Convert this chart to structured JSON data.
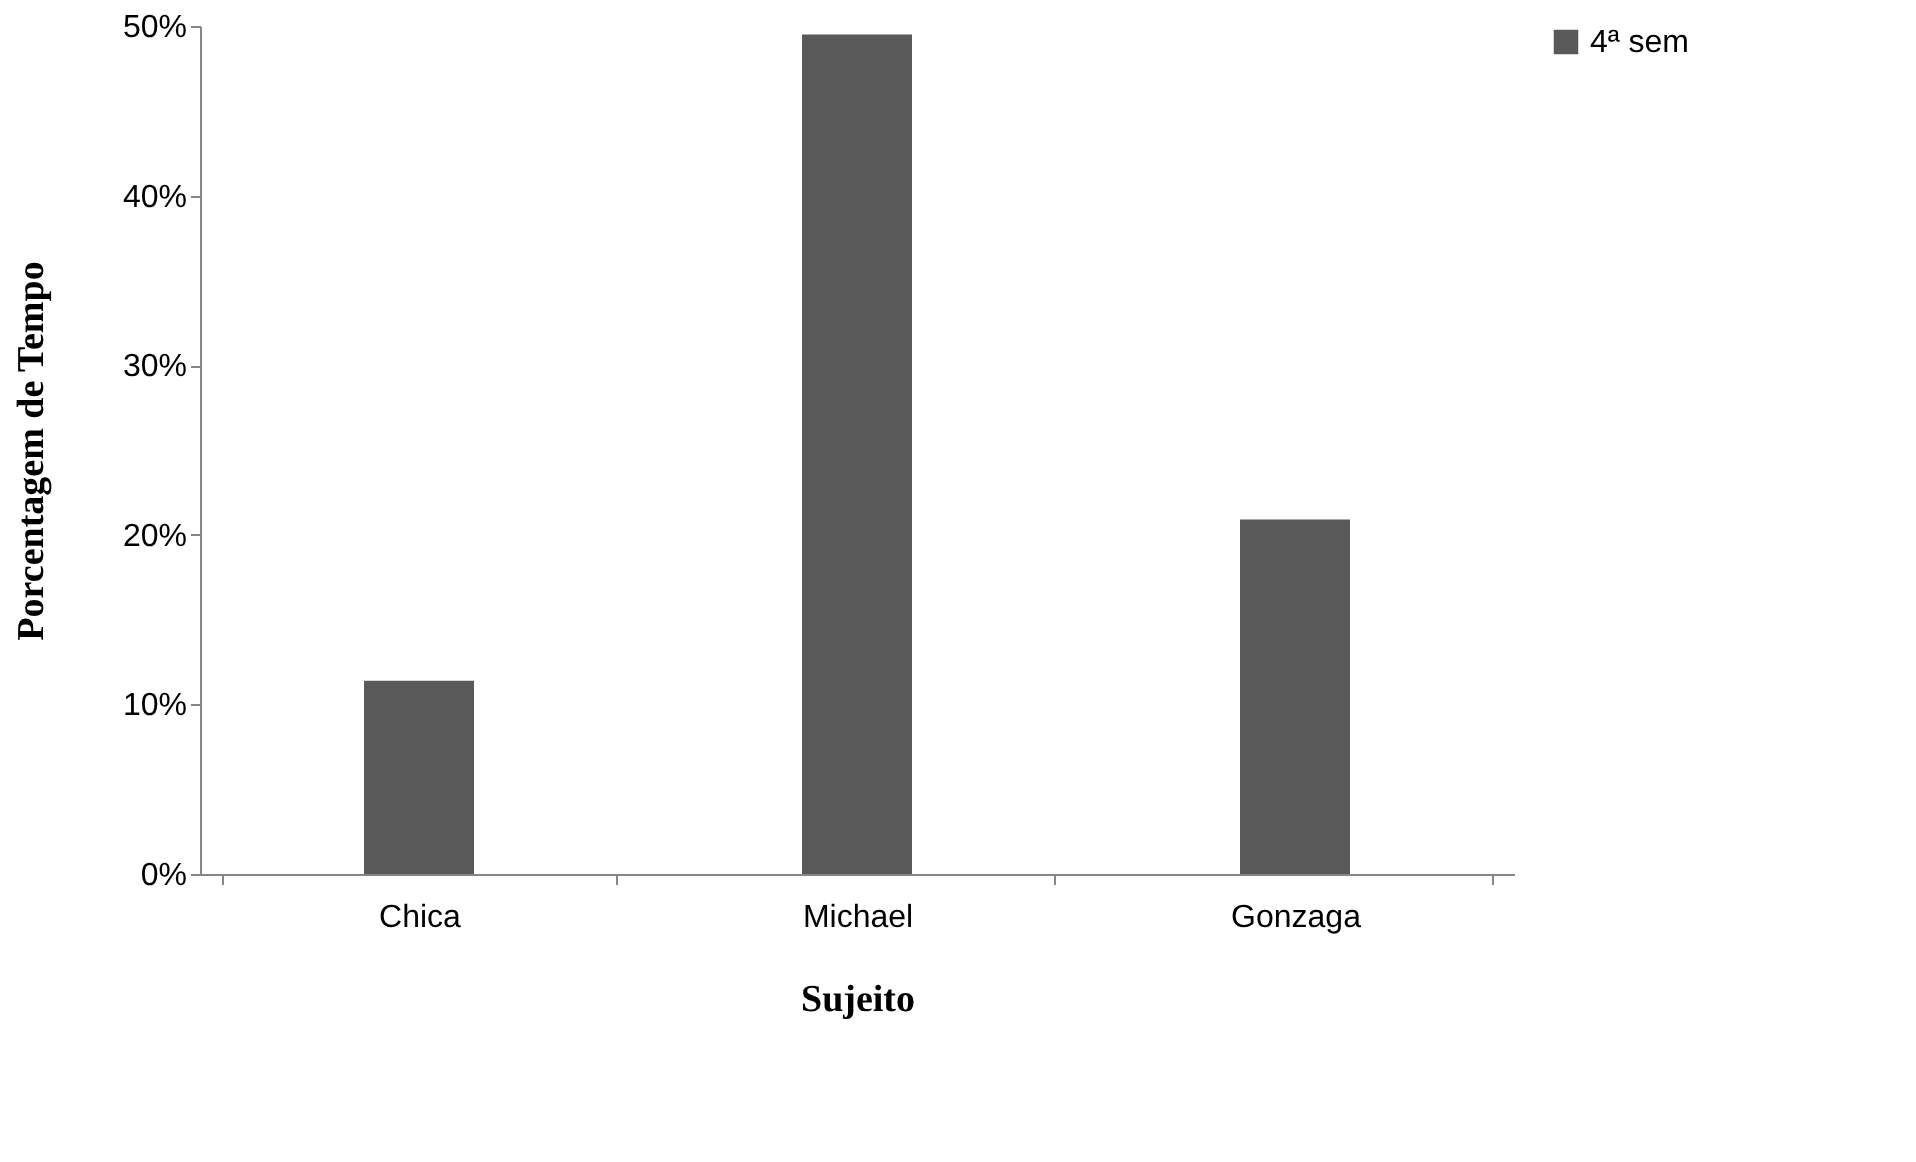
{
  "chart_data": {
    "type": "bar",
    "xlabel": "Sujeito",
    "ylabel": "Porcentagem de Tempo",
    "categories": [
      "Chica",
      "Michael",
      "Gonzaga"
    ],
    "series": [
      {
        "name": "4ª sem",
        "color": "#595959",
        "values": [
          11.4,
          49.5,
          20.9
        ]
      }
    ],
    "ylim": [
      0,
      50
    ],
    "yticks": [
      {
        "value": 0,
        "label": "0%"
      },
      {
        "value": 10,
        "label": "10%"
      },
      {
        "value": 20,
        "label": "20%"
      },
      {
        "value": 30,
        "label": "30%"
      },
      {
        "value": 40,
        "label": "40%"
      },
      {
        "value": 50,
        "label": "50%"
      }
    ],
    "grid": false,
    "legend": "right"
  }
}
